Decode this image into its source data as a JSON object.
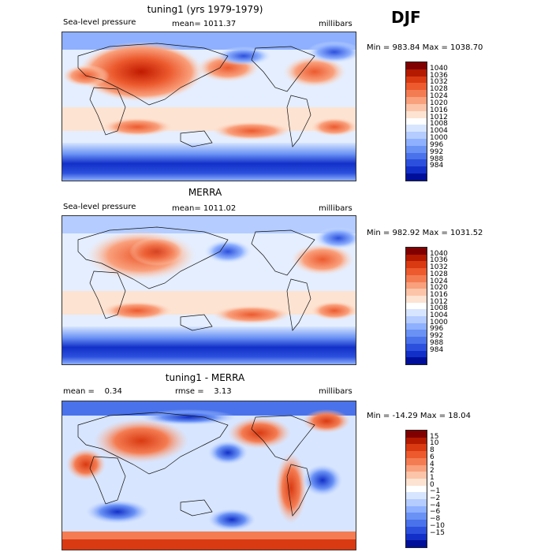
{
  "season": "DJF",
  "panels": [
    {
      "title": "tuning1 (yrs 1979-1979)",
      "left_label": "Sea-level pressure",
      "center_label": "mean= 1011.37",
      "right_label": "millibars",
      "range_label": "Min = 983.84 Max = 1038.70",
      "colorbar": {
        "labels": [
          "1040",
          "1036",
          "1032",
          "1028",
          "1024",
          "1020",
          "1016",
          "1012",
          "1008",
          "1004",
          "1000",
          "996",
          "992",
          "988",
          "984"
        ],
        "colors": [
          "#800000",
          "#b31a00",
          "#d93a12",
          "#ec5a2e",
          "#f47c52",
          "#f9a07c",
          "#fcc4a8",
          "#fde3d2",
          "#ffffff",
          "#d7e5ff",
          "#b4ccff",
          "#8eb0ff",
          "#6a92f5",
          "#4a72ea",
          "#2c50dd",
          "#1230c8",
          "#000f9a"
        ]
      }
    },
    {
      "title": "MERRA",
      "left_label": "Sea-level pressure",
      "center_label": "mean= 1011.02",
      "right_label": "millibars",
      "range_label": "Min = 982.92 Max = 1031.52",
      "colorbar": {
        "labels": [
          "1040",
          "1036",
          "1032",
          "1028",
          "1024",
          "1020",
          "1016",
          "1012",
          "1008",
          "1004",
          "1000",
          "996",
          "992",
          "988",
          "984"
        ],
        "colors": [
          "#800000",
          "#b31a00",
          "#d93a12",
          "#ec5a2e",
          "#f47c52",
          "#f9a07c",
          "#fcc4a8",
          "#fde3d2",
          "#ffffff",
          "#d7e5ff",
          "#b4ccff",
          "#8eb0ff",
          "#6a92f5",
          "#4a72ea",
          "#2c50dd",
          "#1230c8",
          "#000f9a"
        ]
      }
    },
    {
      "title": "tuning1 - MERRA",
      "left_label": "mean =    0.34",
      "center_label": "rmse =    3.13",
      "right_label": "millibars",
      "range_label": "Min = -14.29 Max =  18.04",
      "colorbar": {
        "labels": [
          "15",
          "10",
          "8",
          "6",
          "4",
          "2",
          "1",
          "0",
          "−1",
          "−2",
          "−4",
          "−6",
          "−8",
          "−10",
          "−15"
        ],
        "colors": [
          "#800000",
          "#b31a00",
          "#d93a12",
          "#ec5a2e",
          "#f47c52",
          "#f9a07c",
          "#fcc4a8",
          "#fde3d2",
          "#ffffff",
          "#d7e5ff",
          "#b4ccff",
          "#8eb0ff",
          "#6a92f5",
          "#4a72ea",
          "#2c50dd",
          "#1230c8",
          "#000f9a"
        ]
      }
    }
  ]
}
